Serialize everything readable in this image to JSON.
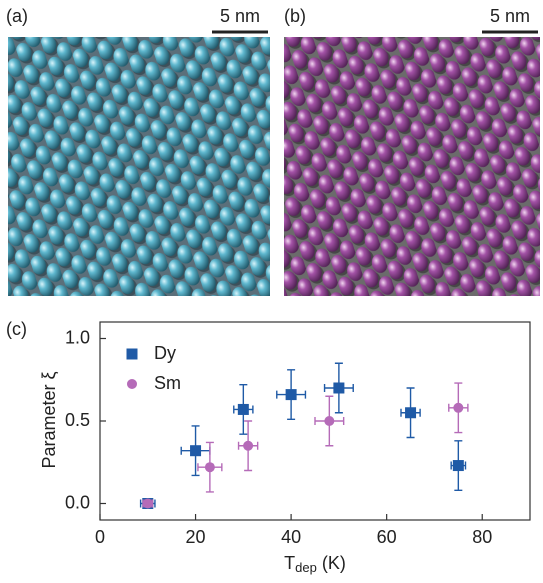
{
  "panels": [
    {
      "label": "(a)",
      "scale_bar": "5 nm"
    },
    {
      "label": "(b)",
      "scale_bar": "5 nm"
    }
  ],
  "chart_data": {
    "type": "scatter",
    "label": "(c)",
    "xlabel": {
      "main": "T",
      "sub": "dep",
      "unit": "(K)"
    },
    "ylabel": "Parameter ξ",
    "xlim": [
      0,
      90
    ],
    "ylim": [
      -0.1,
      1.1
    ],
    "xticks": [
      0,
      20,
      40,
      60,
      80
    ],
    "yticks": [
      {
        "value": 0,
        "label": "0.0"
      },
      {
        "value": 0.5,
        "label": "0.5"
      },
      {
        "value": 1,
        "label": "1.0"
      }
    ],
    "legend": "upper left",
    "series": [
      {
        "name": "Dy",
        "color": "#1f5aa6",
        "marker": "square",
        "x": [
          10,
          20,
          30,
          40,
          50,
          65,
          75
        ],
        "values": [
          0.0,
          0.32,
          0.57,
          0.66,
          0.7,
          0.55,
          0.23
        ],
        "xerr": [
          1.5,
          3,
          2,
          3,
          3,
          2,
          1.5
        ],
        "yerr": [
          0.02,
          0.15,
          0.15,
          0.15,
          0.15,
          0.15,
          0.15
        ]
      },
      {
        "name": "Sm",
        "color": "#b56bb8",
        "marker": "circle",
        "x": [
          10,
          23,
          31,
          48,
          75
        ],
        "values": [
          0.0,
          0.22,
          0.35,
          0.5,
          0.58
        ],
        "xerr": [
          1,
          2.5,
          2,
          3,
          2
        ],
        "yerr": [
          0.02,
          0.15,
          0.15,
          0.15,
          0.15
        ]
      }
    ]
  }
}
